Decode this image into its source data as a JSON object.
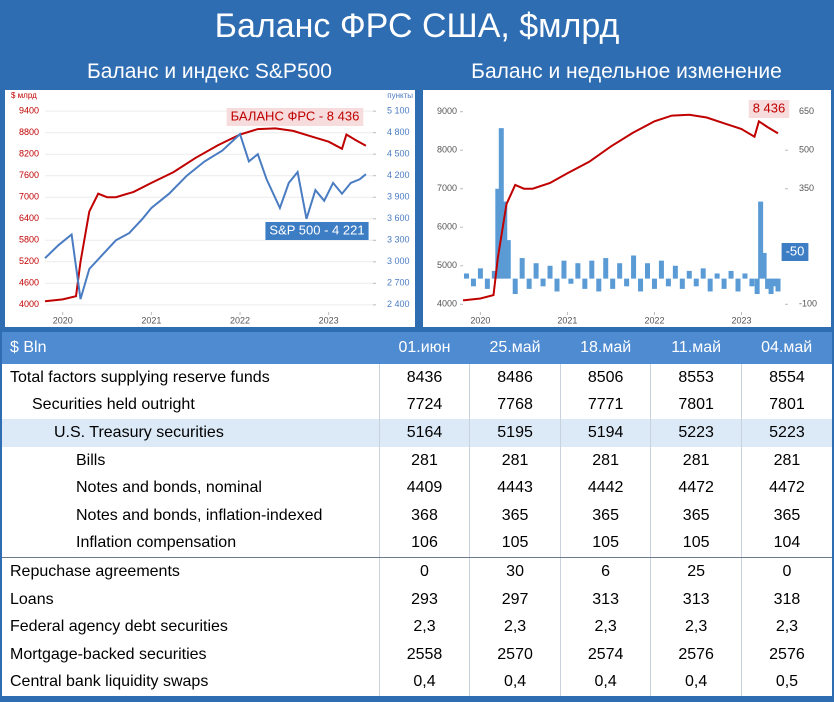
{
  "header": {
    "title": "Баланс ФРС США, $млрд"
  },
  "chart_data": [
    {
      "type": "line",
      "title": "Баланс и индекс S&P500",
      "ylabel": "$ млрд",
      "y2label": "пункты",
      "xlim": [
        2019.8,
        2023.5
      ],
      "xticks": [
        2020,
        2021,
        2022,
        2023
      ],
      "ylim": [
        3800,
        9600
      ],
      "yticks": [
        4000,
        4600,
        5200,
        5800,
        6400,
        7000,
        7600,
        8200,
        8800,
        9400
      ],
      "y2lim": [
        2300,
        5200
      ],
      "y2ticks": [
        {
          "value": 2400,
          "label": "2 400"
        },
        {
          "value": 2700,
          "label": "2 700"
        },
        {
          "value": 3000,
          "label": "3 000"
        },
        {
          "value": 3300,
          "label": "3 300"
        },
        {
          "value": 3600,
          "label": "3 600"
        },
        {
          "value": 3900,
          "label": "3 900"
        },
        {
          "value": 4200,
          "label": "4 200"
        },
        {
          "value": 4500,
          "label": "4 500"
        },
        {
          "value": 4800,
          "label": "4 800"
        },
        {
          "value": 5100,
          "label": "5 100"
        }
      ],
      "grid": true,
      "annotations": [
        "БАЛАНС ФРС - 8 436",
        "S&P 500 - 4 221"
      ],
      "series": [
        {
          "type": "line",
          "color": "#c00000",
          "x": [
            2019.8,
            2020.0,
            2020.15,
            2020.2,
            2020.3,
            2020.4,
            2020.5,
            2020.6,
            2020.8,
            2021.0,
            2021.25,
            2021.5,
            2021.75,
            2022.0,
            2022.2,
            2022.4,
            2022.6,
            2022.8,
            2023.0,
            2023.15,
            2023.2,
            2023.3,
            2023.42
          ],
          "values": [
            4100,
            4150,
            4240,
            5200,
            6600,
            7100,
            7000,
            7000,
            7150,
            7400,
            7700,
            8100,
            8450,
            8750,
            8900,
            8920,
            8850,
            8700,
            8550,
            8350,
            8750,
            8600,
            8436
          ]
        },
        {
          "type": "line",
          "color": "#4a7cc2",
          "axis": "y2",
          "x": [
            2019.8,
            2019.95,
            2020.1,
            2020.2,
            2020.3,
            2020.45,
            2020.6,
            2020.75,
            2020.9,
            2021.0,
            2021.2,
            2021.4,
            2021.6,
            2021.8,
            2022.0,
            2022.1,
            2022.2,
            2022.3,
            2022.45,
            2022.55,
            2022.65,
            2022.75,
            2022.85,
            2022.95,
            2023.05,
            2023.15,
            2023.25,
            2023.35,
            2023.42
          ],
          "values": [
            3050,
            3230,
            3380,
            2480,
            2900,
            3100,
            3300,
            3400,
            3600,
            3750,
            3950,
            4200,
            4400,
            4550,
            4780,
            4400,
            4500,
            4150,
            3750,
            4100,
            4250,
            3600,
            4000,
            3850,
            4100,
            3950,
            4100,
            4150,
            4221
          ]
        }
      ]
    },
    {
      "type": "combo",
      "title": "Баланс и недельное изменение",
      "xlim": [
        2019.8,
        2023.5
      ],
      "xticks": [
        2020,
        2021,
        2022,
        2023
      ],
      "ylim": [
        3800,
        9200
      ],
      "yticks": [
        4000,
        5000,
        6000,
        7000,
        8000,
        9000
      ],
      "y2lim": [
        -130,
        680
      ],
      "y2ticks": [
        -100,
        350,
        500,
        650
      ],
      "grid": false,
      "annotations": [
        "8 436",
        "-50"
      ],
      "series": [
        {
          "type": "bar",
          "color": "#5b9bd5",
          "axis": "y2",
          "x": [
            2019.84,
            2019.92,
            2020.0,
            2020.08,
            2020.16,
            2020.2,
            2020.24,
            2020.28,
            2020.32,
            2020.4,
            2020.48,
            2020.56,
            2020.64,
            2020.72,
            2020.8,
            2020.88,
            2020.96,
            2021.04,
            2021.12,
            2021.2,
            2021.28,
            2021.36,
            2021.44,
            2021.52,
            2021.6,
            2021.68,
            2021.76,
            2021.84,
            2021.92,
            2022.0,
            2022.08,
            2022.16,
            2022.24,
            2022.32,
            2022.4,
            2022.48,
            2022.56,
            2022.64,
            2022.72,
            2022.8,
            2022.88,
            2022.96,
            2023.04,
            2023.12,
            2023.18,
            2023.22,
            2023.26,
            2023.3,
            2023.34,
            2023.38,
            2023.42
          ],
          "values": [
            20,
            -30,
            40,
            -40,
            30,
            350,
            586,
            300,
            150,
            -60,
            80,
            -40,
            60,
            -30,
            50,
            -50,
            70,
            -20,
            60,
            -40,
            70,
            -50,
            80,
            -40,
            60,
            -30,
            90,
            -50,
            60,
            -40,
            70,
            -30,
            50,
            -40,
            30,
            -30,
            40,
            -50,
            20,
            -40,
            30,
            -50,
            20,
            -30,
            -60,
            300,
            100,
            -40,
            -60,
            -30,
            -50
          ]
        },
        {
          "type": "line",
          "color": "#c00000",
          "x": [
            2019.8,
            2020.0,
            2020.15,
            2020.2,
            2020.3,
            2020.4,
            2020.5,
            2020.6,
            2020.8,
            2021.0,
            2021.25,
            2021.5,
            2021.75,
            2022.0,
            2022.2,
            2022.4,
            2022.6,
            2022.8,
            2023.0,
            2023.15,
            2023.2,
            2023.3,
            2023.42
          ],
          "values": [
            4100,
            4150,
            4240,
            5200,
            6600,
            7100,
            7000,
            7000,
            7150,
            7400,
            7700,
            8100,
            8450,
            8750,
            8900,
            8920,
            8850,
            8700,
            8550,
            8350,
            8750,
            8600,
            8436
          ]
        }
      ]
    }
  ],
  "table": {
    "header": [
      "$ Bln",
      "01.июн",
      "25.май",
      "18.май",
      "11.май",
      "04.май"
    ],
    "rows": [
      [
        "Total factors supplying reserve funds",
        8436,
        8486,
        8506,
        8553,
        8554
      ],
      [
        "Securities held outright",
        7724,
        7768,
        7771,
        7801,
        7801
      ],
      [
        "U.S. Treasury securities",
        5164,
        5195,
        5194,
        5223,
        5223
      ],
      [
        "Bills",
        281,
        281,
        281,
        281,
        281
      ],
      [
        "Notes and bonds, nominal",
        4409,
        4443,
        4442,
        4472,
        4472
      ],
      [
        "Notes and bonds, inflation-indexed",
        368,
        365,
        365,
        365,
        365
      ],
      [
        "Inflation compensation",
        106,
        105,
        105,
        105,
        104
      ],
      [
        "Repuchase agreements",
        0,
        30,
        6,
        25,
        0
      ],
      [
        "Loans",
        293,
        297,
        313,
        313,
        318
      ],
      [
        "Federal agency debt securities",
        "2,3",
        "2,3",
        "2,3",
        "2,3",
        "2,3"
      ],
      [
        "Mortgage-backed securities",
        2558,
        2570,
        2574,
        2576,
        2576
      ],
      [
        "Central bank liquidity swaps",
        "0,4",
        "0,4",
        "0,4",
        "0,4",
        "0,5"
      ]
    ]
  }
}
